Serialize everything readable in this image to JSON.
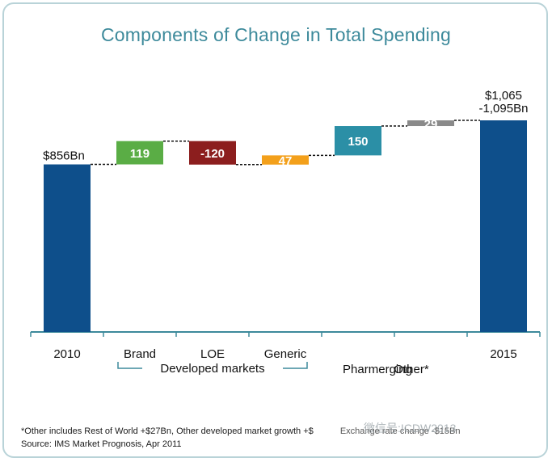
{
  "title": "Components of Change in Total Spending",
  "chart_data": {
    "type": "waterfall",
    "unit": "$Bn",
    "steps": [
      {
        "label": "2010",
        "kind": "total",
        "value": 856,
        "data_label": "$856Bn",
        "color": "#0e4f8b"
      },
      {
        "label": "Brand",
        "kind": "delta",
        "value": 119,
        "data_label": "119",
        "color": "#5aad45"
      },
      {
        "label": "LOE",
        "kind": "delta",
        "value": -120,
        "data_label": "-120",
        "color": "#8c1e1e"
      },
      {
        "label": "Generic",
        "kind": "delta",
        "value": 47,
        "data_label": "47",
        "color": "#f3a01b"
      },
      {
        "label": "Pharmerging",
        "kind": "delta",
        "value": 150,
        "data_label": "150",
        "color": "#2b8fa6"
      },
      {
        "label": "Other*",
        "kind": "delta",
        "value": 29,
        "data_label": "29",
        "color": "#8a8a8a"
      },
      {
        "label": "2015",
        "kind": "total",
        "value": 1081,
        "data_label": "$1,065\n-1,095Bn",
        "color": "#0e4f8b"
      }
    ],
    "group_label": "Developed markets",
    "ylim": [
      0,
      1150
    ]
  },
  "footnote": "*Other includes Rest of World +$27Bn, Other developed market growth +$",
  "footnote_tail": "Exchange rate change -$15Bn",
  "source": "Source: IMS Market Prognosis, Apr 2011",
  "watermark": "微信号:ICDW2013"
}
